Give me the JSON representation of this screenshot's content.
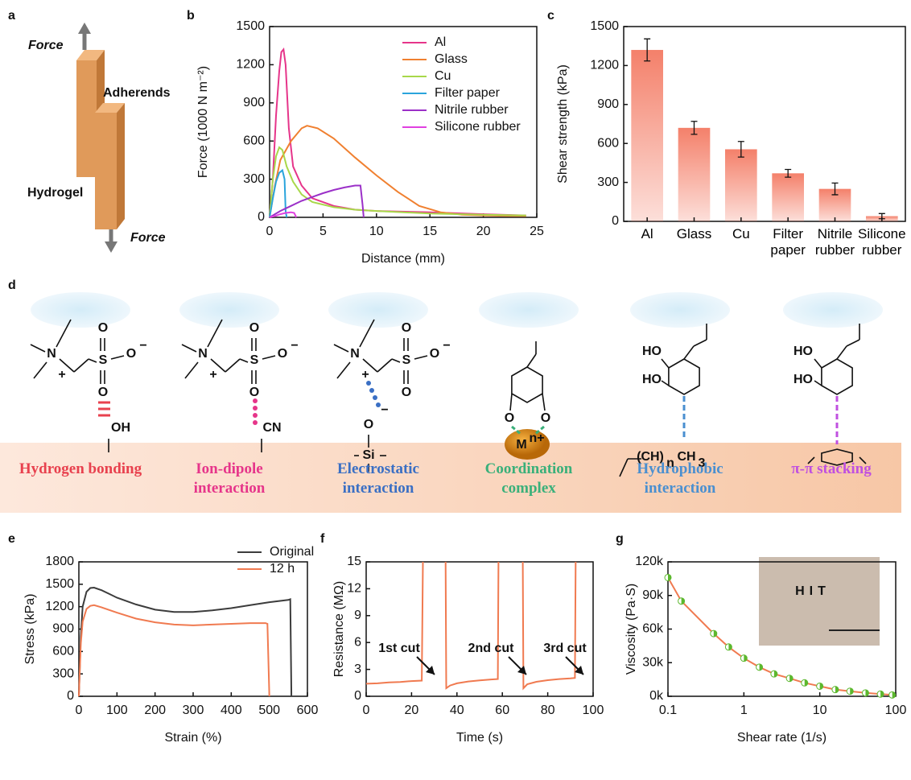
{
  "panel_a": {
    "panel": "a",
    "labels": [
      "Force",
      "Adherends",
      "Hydrogel",
      "Force"
    ]
  },
  "chart_data": [
    {
      "type": "line",
      "panel": "b",
      "x_label": "Distance (mm)",
      "y_label": "Force (1000 N m⁻²)",
      "xlim": [
        0,
        25
      ],
      "ylim": [
        0,
        1500
      ],
      "xticks": [
        0,
        5,
        10,
        15,
        20,
        25
      ],
      "yticks": [
        0,
        300,
        600,
        900,
        1200,
        1500
      ],
      "legend": "upper right",
      "series": [
        {
          "name": "Al",
          "color": "#e6358a",
          "x": [
            0,
            0.3,
            0.6,
            0.9,
            1.1,
            1.3,
            1.5,
            1.8,
            2.2,
            3,
            4,
            6,
            8,
            10,
            15,
            20,
            24
          ],
          "values": [
            0,
            300,
            800,
            1150,
            1300,
            1320,
            1200,
            700,
            400,
            250,
            150,
            90,
            60,
            50,
            40,
            25,
            15
          ]
        },
        {
          "name": "Glass",
          "color": "#f08030",
          "x": [
            0,
            0.5,
            1,
            2,
            3,
            3.5,
            4.5,
            6,
            8,
            10,
            12,
            14,
            16,
            18,
            20,
            22,
            24
          ],
          "values": [
            0,
            250,
            450,
            600,
            700,
            720,
            700,
            620,
            470,
            330,
            200,
            90,
            40,
            20,
            15,
            12,
            10
          ]
        },
        {
          "name": "Cu",
          "color": "#a8d84a",
          "x": [
            0,
            0.3,
            0.6,
            0.9,
            1.2,
            1.6,
            2.2,
            3,
            4,
            6,
            8,
            10,
            15,
            20,
            24
          ],
          "values": [
            0,
            300,
            480,
            550,
            530,
            400,
            280,
            180,
            120,
            80,
            60,
            50,
            30,
            20,
            15
          ]
        },
        {
          "name": "Filter paper",
          "color": "#2aa4dc",
          "x": [
            0,
            0.3,
            0.6,
            0.9,
            1.2,
            1.4,
            1.5,
            1.6
          ],
          "values": [
            0,
            150,
            280,
            350,
            370,
            300,
            50,
            0
          ]
        },
        {
          "name": "Nitrile rubber",
          "color": "#9b30c8",
          "x": [
            0,
            1,
            2,
            3,
            4,
            5,
            6,
            7,
            8,
            8.5,
            8.7,
            8.8
          ],
          "values": [
            0,
            50,
            90,
            130,
            160,
            190,
            215,
            235,
            250,
            250,
            100,
            0
          ]
        },
        {
          "name": "Silicone rubber",
          "color": "#e040e0",
          "x": [
            0,
            0.5,
            1,
            1.5,
            2,
            2.3,
            2.5
          ],
          "values": [
            0,
            10,
            25,
            35,
            40,
            35,
            0
          ]
        }
      ]
    },
    {
      "type": "bar",
      "panel": "c",
      "y_label": "Shear strength (kPa)",
      "color": "#f4806a",
      "categories": [
        "Al",
        "Glass",
        "Cu",
        "Filter paper",
        "Nitrile rubber",
        "Silicone rubber"
      ],
      "values": [
        1320,
        720,
        555,
        370,
        250,
        40
      ],
      "errors": [
        85,
        50,
        60,
        30,
        45,
        20
      ],
      "ylim": [
        0,
        1500
      ],
      "yticks": [
        0,
        300,
        600,
        900,
        1200,
        1500
      ]
    },
    {
      "type": "line",
      "panel": "e",
      "x_label": "Strain (%)",
      "y_label": "Stress (kPa)",
      "xlim": [
        0,
        600
      ],
      "ylim": [
        0,
        1800
      ],
      "xticks": [
        0,
        100,
        200,
        300,
        400,
        500,
        600
      ],
      "yticks": [
        0,
        300,
        600,
        900,
        1200,
        1500,
        1800
      ],
      "legend": "upper right",
      "series": [
        {
          "name": "Original",
          "color": "#3c3c3c",
          "x": [
            0,
            5,
            10,
            20,
            30,
            40,
            60,
            80,
            100,
            150,
            200,
            250,
            300,
            350,
            400,
            450,
            500,
            550,
            555,
            558
          ],
          "values": [
            0,
            800,
            1200,
            1400,
            1450,
            1455,
            1420,
            1370,
            1320,
            1230,
            1160,
            1130,
            1130,
            1150,
            1180,
            1220,
            1260,
            1290,
            1300,
            0
          ]
        },
        {
          "name": "12 h",
          "color": "#f07a50",
          "x": [
            0,
            5,
            10,
            20,
            30,
            40,
            60,
            100,
            150,
            200,
            250,
            300,
            350,
            400,
            450,
            490,
            495,
            500
          ],
          "values": [
            0,
            700,
            1000,
            1170,
            1210,
            1220,
            1190,
            1120,
            1040,
            990,
            960,
            950,
            960,
            970,
            980,
            980,
            970,
            0
          ]
        }
      ]
    },
    {
      "type": "line",
      "panel": "f",
      "x_label": "Time (s)",
      "y_label": "Resistance (MΩ)",
      "xlim": [
        0,
        100
      ],
      "ylim": [
        0,
        15
      ],
      "xticks": [
        0,
        20,
        40,
        60,
        80,
        100
      ],
      "yticks": [
        0,
        3,
        6,
        9,
        12,
        15
      ],
      "annotations": [
        "1st cut",
        "2nd cut",
        "3rd cut"
      ],
      "series": [
        {
          "color": "#f07a50",
          "x": [
            0,
            5,
            10,
            15,
            20,
            24.5,
            25,
            null,
            35,
            35.3,
            37,
            40,
            45,
            50,
            55,
            58,
            58.3,
            null,
            69,
            69.3,
            71,
            75,
            80,
            85,
            90,
            92,
            92.3
          ],
          "values": [
            1.4,
            1.45,
            1.55,
            1.6,
            1.7,
            1.75,
            15,
            null,
            15,
            0.9,
            1.2,
            1.45,
            1.65,
            1.78,
            1.88,
            1.92,
            15,
            null,
            15,
            0.9,
            1.35,
            1.62,
            1.8,
            1.92,
            2.0,
            2.05,
            15
          ]
        }
      ]
    },
    {
      "type": "line",
      "panel": "g",
      "x_label": "Shear rate (1/s)",
      "y_label": "Viscosity (Pa·S)",
      "xscale": "log",
      "markers": true,
      "marker_color": "#5cb82e",
      "inset_text": "HIT",
      "xlim": [
        0.1,
        100
      ],
      "ylim": [
        0,
        120000
      ],
      "xticks": [
        0.1,
        1,
        10,
        100
      ],
      "yticks": [
        {
          "value": 0,
          "label": "0k"
        },
        {
          "value": 30000,
          "label": "30k"
        },
        {
          "value": 60000,
          "label": "60k"
        },
        {
          "value": 90000,
          "label": "90k"
        },
        {
          "value": 120000,
          "label": "120k"
        }
      ],
      "series": [
        {
          "color": "#f07a50",
          "x": [
            0.1,
            0.15,
            0.4,
            0.63,
            1,
            1.6,
            2.5,
            4,
            6.3,
            10,
            16,
            25,
            40,
            63,
            90
          ],
          "values": [
            106000,
            85000,
            56000,
            44000,
            34000,
            26000,
            20000,
            16000,
            12000,
            9000,
            6000,
            4500,
            3000,
            2000,
            1200
          ]
        }
      ]
    }
  ],
  "panel_d": {
    "panel": "d",
    "interactions": [
      {
        "label": "Hydrogen bonding",
        "color": "#e8414e",
        "atoms": [
          "N",
          "+",
          "S",
          "O",
          "O",
          "O",
          "−",
          "OH"
        ]
      },
      {
        "label": "Ion-dipole interaction",
        "color": "#e6358a",
        "atoms": [
          "N",
          "+",
          "S",
          "O",
          "O",
          "O",
          "−",
          "CN"
        ]
      },
      {
        "label": "Electrostatic interaction",
        "color": "#3a6fc4",
        "atoms": [
          "N",
          "+",
          "S",
          "O",
          "O",
          "O",
          "−",
          "−",
          "O",
          "Si"
        ]
      },
      {
        "label": "Coordination complex",
        "color": "#3ab07a",
        "atoms": [
          "O",
          "O",
          "M",
          "n+"
        ]
      },
      {
        "label": "Hydrophobic interaction",
        "color": "#4a8fd0",
        "atoms": [
          "HO",
          "HO",
          "(CH)",
          "n",
          "CH",
          "3"
        ]
      },
      {
        "label": "π-π stacking",
        "color": "#c050e0",
        "atoms": [
          "HO",
          "HO"
        ]
      }
    ]
  }
}
